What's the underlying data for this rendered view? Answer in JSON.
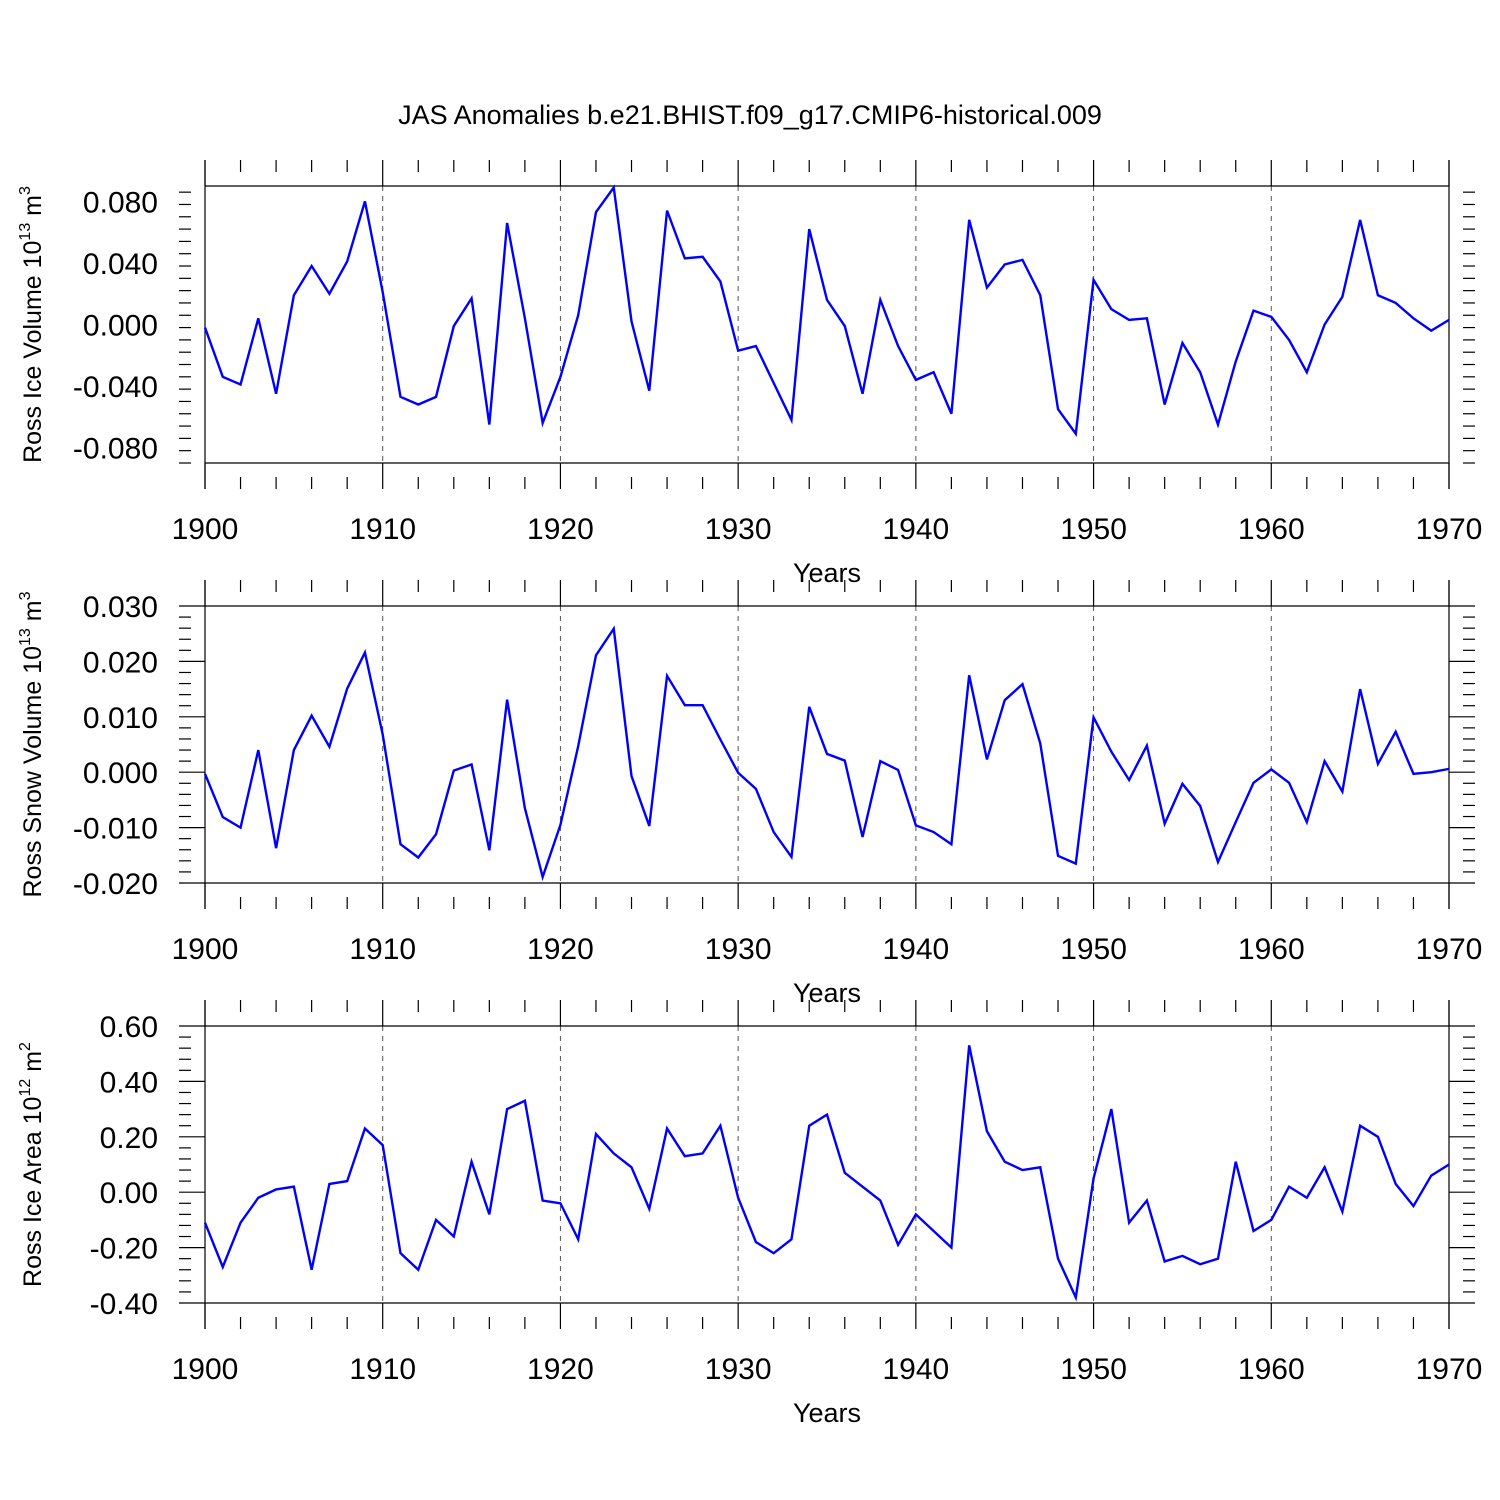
{
  "title": "JAS Anomalies b.e21.BHIST.f09_g17.CMIP6-historical.009",
  "series_color": "#0000ff",
  "chart_data": [
    {
      "type": "line",
      "ylabel_main": "Ross Ice Volume 10",
      "ylabel_exp": "13",
      "ylabel_unit": " m",
      "ylabel_unit_exp": "3",
      "xlabel": "Years",
      "xlim": [
        1900,
        1970
      ],
      "ylim": [
        -0.09,
        0.09
      ],
      "xticks": [
        1900,
        1910,
        1920,
        1930,
        1940,
        1950,
        1960,
        1970
      ],
      "xtick_labels": [
        "1900",
        "1910",
        "1920",
        "1930",
        "1940",
        "1950",
        "1960",
        "1970"
      ],
      "yticks": [
        -0.08,
        -0.04,
        0.0,
        0.04,
        0.08
      ],
      "ytick_labels": [
        "-0.080",
        "-0.040",
        "0.000",
        "0.040",
        "0.080"
      ],
      "grid": "dashed vertical at decades",
      "x": [
        1900,
        1901,
        1902,
        1903,
        1904,
        1905,
        1906,
        1907,
        1908,
        1909,
        1910,
        1911,
        1912,
        1913,
        1914,
        1915,
        1916,
        1917,
        1918,
        1919,
        1920,
        1921,
        1922,
        1923,
        1924,
        1925,
        1926,
        1927,
        1928,
        1929,
        1930,
        1931,
        1932,
        1933,
        1934,
        1935,
        1936,
        1937,
        1938,
        1939,
        1940,
        1941,
        1942,
        1943,
        1944,
        1945,
        1946,
        1947,
        1948,
        1949,
        1950,
        1951,
        1952,
        1953,
        1954,
        1955,
        1956,
        1957,
        1958,
        1959,
        1960,
        1961,
        1962,
        1963,
        1964,
        1965,
        1966,
        1967,
        1968,
        1969,
        1970
      ],
      "values": [
        -0.002,
        -0.034,
        -0.039,
        0.004,
        -0.045,
        0.019,
        0.038,
        0.02,
        0.041,
        0.08,
        0.021,
        -0.047,
        -0.052,
        -0.047,
        -0.001,
        0.017,
        -0.065,
        0.066,
        0.004,
        -0.064,
        -0.034,
        0.006,
        0.073,
        0.089,
        0.002,
        -0.043,
        0.074,
        0.043,
        0.044,
        0.028,
        -0.017,
        -0.014,
        -0.038,
        -0.062,
        0.062,
        0.016,
        -0.001,
        -0.045,
        0.016,
        -0.014,
        -0.036,
        -0.031,
        -0.058,
        0.068,
        0.024,
        0.039,
        0.042,
        0.019,
        -0.055,
        -0.071,
        0.029,
        0.01,
        0.003,
        0.004,
        -0.052,
        -0.012,
        -0.031,
        -0.065,
        -0.024,
        0.009,
        0.005,
        -0.01,
        -0.031,
        0.0,
        0.018,
        0.068,
        0.019,
        0.014,
        0.004,
        -0.004,
        0.003
      ]
    },
    {
      "type": "line",
      "ylabel_main": "Ross Snow Volume 10",
      "ylabel_exp": "13",
      "ylabel_unit": " m",
      "ylabel_unit_exp": "3",
      "xlabel": "Years",
      "xlim": [
        1900,
        1970
      ],
      "ylim": [
        -0.02,
        0.03
      ],
      "xticks": [
        1900,
        1910,
        1920,
        1930,
        1940,
        1950,
        1960,
        1970
      ],
      "xtick_labels": [
        "1900",
        "1910",
        "1920",
        "1930",
        "1940",
        "1950",
        "1960",
        "1970"
      ],
      "yticks": [
        -0.02,
        -0.01,
        0.0,
        0.01,
        0.02,
        0.03
      ],
      "ytick_labels": [
        "-0.020",
        "-0.010",
        "0.000",
        "0.010",
        "0.020",
        "0.030"
      ],
      "grid": "dashed vertical at decades",
      "x": [
        1900,
        1901,
        1902,
        1903,
        1904,
        1905,
        1906,
        1907,
        1908,
        1909,
        1910,
        1911,
        1912,
        1913,
        1914,
        1915,
        1916,
        1917,
        1918,
        1919,
        1920,
        1921,
        1922,
        1923,
        1924,
        1925,
        1926,
        1927,
        1928,
        1929,
        1930,
        1931,
        1932,
        1933,
        1934,
        1935,
        1936,
        1937,
        1938,
        1939,
        1940,
        1941,
        1942,
        1943,
        1944,
        1945,
        1946,
        1947,
        1948,
        1949,
        1950,
        1951,
        1952,
        1953,
        1954,
        1955,
        1956,
        1957,
        1958,
        1959,
        1960,
        1961,
        1962,
        1963,
        1964,
        1965,
        1966,
        1967,
        1968,
        1969,
        1970
      ],
      "values": [
        -0.0003,
        -0.0081,
        -0.01,
        0.004,
        -0.0137,
        0.004,
        0.0102,
        0.0046,
        0.0151,
        0.0216,
        0.0068,
        -0.013,
        -0.0154,
        -0.0112,
        0.0003,
        0.0014,
        -0.0141,
        0.0131,
        -0.0065,
        -0.0189,
        -0.0095,
        0.0047,
        0.0211,
        0.0259,
        -0.0007,
        -0.0097,
        0.0174,
        0.0121,
        0.0121,
        0.0059,
        -0.0001,
        -0.003,
        -0.0108,
        -0.0153,
        0.0118,
        0.0033,
        0.0021,
        -0.0117,
        0.002,
        0.0004,
        -0.0096,
        -0.0108,
        -0.013,
        0.0175,
        0.0023,
        0.013,
        0.0159,
        0.0052,
        -0.0151,
        -0.0165,
        0.0099,
        0.0037,
        -0.0014,
        0.0048,
        -0.0093,
        -0.0021,
        -0.0061,
        -0.0162,
        -0.009,
        -0.0019,
        0.0005,
        -0.0019,
        -0.009,
        0.002,
        -0.0035,
        0.015,
        0.0015,
        0.0073,
        -0.0003,
        0.0,
        0.0006
      ]
    },
    {
      "type": "line",
      "ylabel_main": "Ross Ice Area 10",
      "ylabel_exp": "12",
      "ylabel_unit": " m",
      "ylabel_unit_exp": "2",
      "xlabel": "Years",
      "xlim": [
        1900,
        1970
      ],
      "ylim": [
        -0.4,
        0.6
      ],
      "xticks": [
        1900,
        1910,
        1920,
        1930,
        1940,
        1950,
        1960,
        1970
      ],
      "xtick_labels": [
        "1900",
        "1910",
        "1920",
        "1930",
        "1940",
        "1950",
        "1960",
        "1970"
      ],
      "yticks": [
        -0.4,
        -0.2,
        0.0,
        0.2,
        0.4,
        0.6
      ],
      "ytick_labels": [
        "-0.40",
        "-0.20",
        "0.00",
        "0.20",
        "0.40",
        "0.60"
      ],
      "grid": "dashed vertical at decades",
      "x": [
        1900,
        1901,
        1902,
        1903,
        1904,
        1905,
        1906,
        1907,
        1908,
        1909,
        1910,
        1911,
        1912,
        1913,
        1914,
        1915,
        1916,
        1917,
        1918,
        1919,
        1920,
        1921,
        1922,
        1923,
        1924,
        1925,
        1926,
        1927,
        1928,
        1929,
        1930,
        1931,
        1932,
        1933,
        1934,
        1935,
        1936,
        1937,
        1938,
        1939,
        1940,
        1941,
        1942,
        1943,
        1944,
        1945,
        1946,
        1947,
        1948,
        1949,
        1950,
        1951,
        1952,
        1953,
        1954,
        1955,
        1956,
        1957,
        1958,
        1959,
        1960,
        1961,
        1962,
        1963,
        1964,
        1965,
        1966,
        1967,
        1968,
        1969,
        1970
      ],
      "values": [
        -0.11,
        -0.27,
        -0.11,
        -0.02,
        0.01,
        0.02,
        -0.28,
        0.03,
        0.04,
        0.23,
        0.17,
        -0.22,
        -0.28,
        -0.1,
        -0.16,
        0.11,
        -0.08,
        0.3,
        0.33,
        -0.03,
        -0.04,
        -0.17,
        0.21,
        0.14,
        0.09,
        -0.06,
        0.23,
        0.13,
        0.14,
        0.24,
        -0.02,
        -0.18,
        -0.22,
        -0.17,
        0.24,
        0.28,
        0.07,
        0.02,
        -0.03,
        -0.19,
        -0.08,
        -0.14,
        -0.2,
        0.53,
        0.22,
        0.11,
        0.08,
        0.09,
        -0.24,
        -0.38,
        0.05,
        0.3,
        -0.11,
        -0.03,
        -0.25,
        -0.23,
        -0.26,
        -0.24,
        0.11,
        -0.14,
        -0.1,
        0.02,
        -0.02,
        0.09,
        -0.07,
        0.24,
        0.2,
        0.03,
        -0.05,
        0.06,
        0.1
      ]
    }
  ]
}
